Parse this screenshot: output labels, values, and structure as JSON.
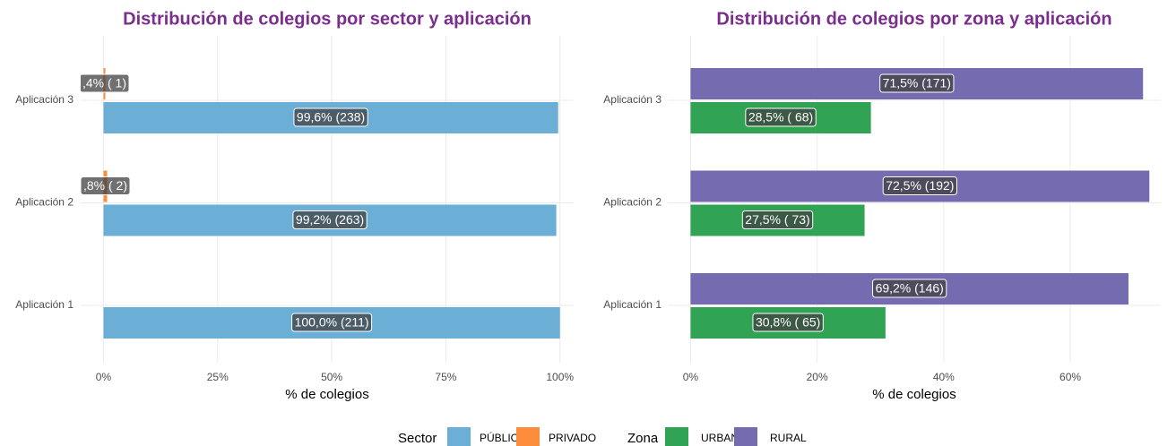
{
  "chart_data": [
    {
      "type": "bar",
      "orientation": "horizontal",
      "title": "Distribución de colegios por sector y aplicación",
      "categories": [
        "Aplicación 1",
        "Aplicación 2",
        "Aplicación 3"
      ],
      "legend_title": "Sector",
      "series": [
        {
          "name": "PÚBLICO",
          "color": "#6baed6",
          "values": [
            100,
            99.2,
            99.6
          ],
          "value_labels": [
            "100,0% (211)",
            "99,2% (263)",
            "99,6% (238)"
          ]
        },
        {
          "name": "PRIVADO",
          "color": "#fd8d3c",
          "values": [
            null,
            0.8,
            0.4
          ],
          "value_labels": [
            null,
            ",8% (  2)",
            ",4% (  1)"
          ]
        }
      ],
      "xlabel": "% de colegios",
      "xlim": [
        -5,
        103
      ],
      "xticks": [
        {
          "value": 0,
          "label": "0%"
        },
        {
          "value": 25,
          "label": "25%"
        },
        {
          "value": 50,
          "label": "50%"
        },
        {
          "value": 75,
          "label": "75%"
        },
        {
          "value": 100,
          "label": "100%"
        }
      ],
      "grid": true
    },
    {
      "type": "bar",
      "orientation": "horizontal",
      "title": "Distribución de colegios por zona y aplicación",
      "categories": [
        "Aplicación 1",
        "Aplicación 2",
        "Aplicación 3"
      ],
      "legend_title": "Zona",
      "series": [
        {
          "name": "URBANO",
          "color": "#31a354",
          "values": [
            30.8,
            27.5,
            28.5
          ],
          "value_labels": [
            "30,8% ( 65)",
            "27,5% ( 73)",
            "28,5% ( 68)"
          ]
        },
        {
          "name": "RURAL",
          "color": "#756bb1",
          "values": [
            69.2,
            72.5,
            71.5
          ],
          "value_labels": [
            "69,2% (146)",
            "72,5% (192)",
            "71,5% (171)"
          ]
        }
      ],
      "xlabel": "% de colegios",
      "xlim": [
        -3.6,
        74.3
      ],
      "xticks": [
        {
          "value": 0,
          "label": "0%"
        },
        {
          "value": 20,
          "label": "20%"
        },
        {
          "value": 40,
          "label": "40%"
        },
        {
          "value": 60,
          "label": "60%"
        }
      ],
      "grid": true
    }
  ]
}
